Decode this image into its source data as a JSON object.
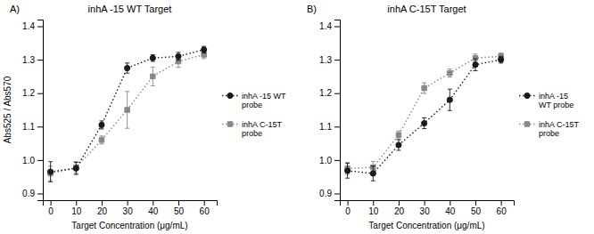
{
  "chart_data": [
    {
      "type": "line",
      "title": "inhA -15 WT Target",
      "annotations": [
        "A)"
      ],
      "xlabel": "Target Concentration (μg/mL)",
      "ylabel": "Abs525 / Abs570",
      "x": [
        0,
        10,
        20,
        30,
        40,
        50,
        60
      ],
      "series": [
        {
          "name": "inhA -15 WT\nprobe",
          "color": "#1a1a1a",
          "marker": "circle",
          "line_style": "dotted",
          "values": [
            0.965,
            0.975,
            1.105,
            1.275,
            1.305,
            1.31,
            1.33
          ],
          "errors": [
            0.03,
            0.018,
            0.012,
            0.015,
            0.01,
            0.012,
            0.01
          ]
        },
        {
          "name": "inhA C-15T\nprobe",
          "color": "#888888",
          "marker": "square",
          "line_style": "dotted",
          "values": [
            0.96,
            0.978,
            1.06,
            1.15,
            1.25,
            1.295,
            1.315
          ],
          "errors": [
            0.022,
            0.018,
            0.012,
            0.055,
            0.028,
            0.018,
            0.012
          ]
        }
      ],
      "xlim": [
        -3,
        65
      ],
      "xticks": [
        0,
        10,
        20,
        30,
        40,
        50,
        60
      ],
      "ylim": [
        0.88,
        1.42
      ],
      "yticks": [
        {
          "value": 0.9,
          "label": "0.9"
        },
        {
          "value": 1.0,
          "label": "1.0"
        },
        {
          "value": 1.1,
          "label": "1.1"
        },
        {
          "value": 1.2,
          "label": "1.2"
        },
        {
          "value": 1.3,
          "label": "1.3"
        },
        {
          "value": 1.4,
          "label": "1.4"
        }
      ],
      "legend": "right",
      "grid": false
    },
    {
      "type": "line",
      "title": "inhA C-15T Target",
      "annotations": [
        "B)"
      ],
      "xlabel": "Target Concentration (μg/mL)",
      "x": [
        0,
        10,
        20,
        30,
        40,
        50,
        60
      ],
      "series": [
        {
          "name": "inhA -15\nWT probe",
          "color": "#1a1a1a",
          "marker": "circle",
          "line_style": "dotted",
          "values": [
            0.968,
            0.96,
            1.045,
            1.11,
            1.18,
            1.285,
            1.3
          ],
          "errors": [
            0.022,
            0.022,
            0.016,
            0.016,
            0.032,
            0.018,
            0.01
          ]
        },
        {
          "name": "inhA C-15T\nprobe",
          "color": "#888888",
          "marker": "square",
          "line_style": "dotted",
          "values": [
            0.975,
            0.978,
            1.075,
            1.215,
            1.26,
            1.305,
            1.31
          ],
          "errors": [
            0.018,
            0.018,
            0.012,
            0.016,
            0.012,
            0.012,
            0.01
          ]
        }
      ],
      "xlim": [
        -3,
        65
      ],
      "xticks": [
        0,
        10,
        20,
        30,
        40,
        50,
        60
      ],
      "ylim": [
        0.88,
        1.42
      ],
      "yticks": [
        {
          "value": 0.9,
          "label": "0.9"
        },
        {
          "value": 1.0,
          "label": "1.0"
        },
        {
          "value": 1.1,
          "label": "1.1"
        },
        {
          "value": 1.2,
          "label": "1.2"
        },
        {
          "value": 1.3,
          "label": "1.3"
        },
        {
          "value": 1.4,
          "label": "1.4"
        }
      ],
      "legend": "right",
      "grid": false
    }
  ]
}
